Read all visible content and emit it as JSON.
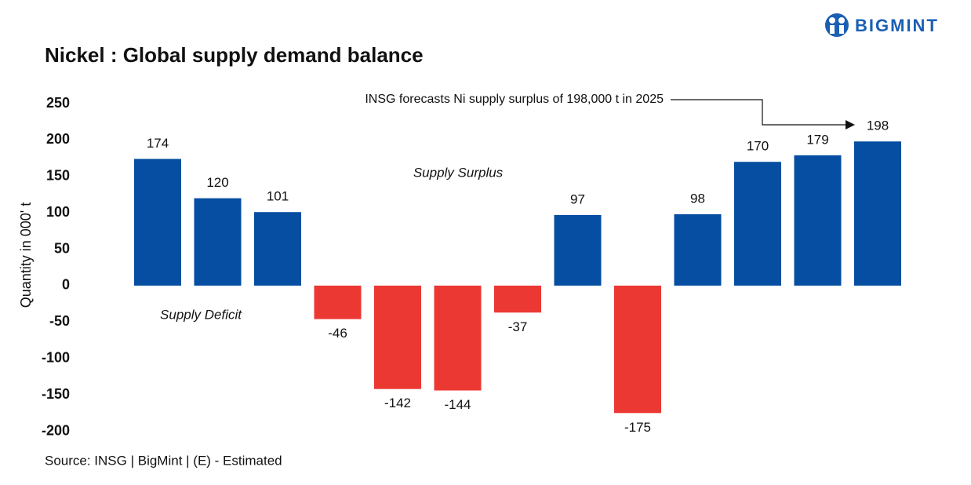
{
  "logo": "BIGMINT",
  "chart_data": {
    "type": "bar",
    "title": "Nickel : Global supply demand balance",
    "y_label": "Quantity in 000' t",
    "source": "Source: INSG | BigMint | (E) - Estimated",
    "annotations": [
      "Supply Surplus",
      "Supply Deficit",
      "INSG forecasts Ni  supply surplus of 198,000 t in 2025"
    ],
    "categories": [
      null,
      null,
      null,
      null,
      null,
      null,
      null,
      null,
      null,
      null,
      null,
      null,
      null
    ],
    "values": [
      174,
      120,
      101,
      -46,
      -142,
      -144,
      -37,
      97,
      -175,
      98,
      170,
      179,
      198
    ],
    "colors": [
      "#054ea1",
      "#054ea1",
      "#054ea1",
      "#ec3833",
      "#ec3833",
      "#ec3833",
      "#ec3833",
      "#054ea1",
      "#ec3833",
      "#054ea1",
      "#054ea1",
      "#054ea1",
      "#054ea1"
    ],
    "ylim": [
      -200,
      250
    ],
    "yticks": [
      -200,
      -150,
      -100,
      -50,
      0,
      50,
      100,
      150,
      200,
      250
    ],
    "grid": false
  }
}
